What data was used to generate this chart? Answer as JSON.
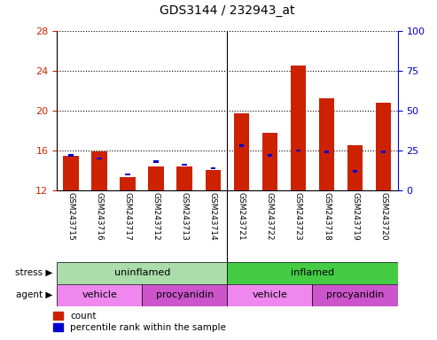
{
  "title": "GDS3144 / 232943_at",
  "samples": [
    "GSM243715",
    "GSM243716",
    "GSM243717",
    "GSM243712",
    "GSM243713",
    "GSM243714",
    "GSM243721",
    "GSM243722",
    "GSM243723",
    "GSM243718",
    "GSM243719",
    "GSM243720"
  ],
  "red_values": [
    15.5,
    15.9,
    13.3,
    14.4,
    14.4,
    14.0,
    19.7,
    17.8,
    24.5,
    21.2,
    16.5,
    20.8
  ],
  "blue_values_pct": [
    22,
    20,
    10,
    18,
    16,
    14,
    28,
    22,
    25,
    24,
    12,
    24
  ],
  "y_min": 12,
  "y_max": 28,
  "y_ticks_left": [
    12,
    16,
    20,
    24,
    28
  ],
  "y_ticks_right": [
    0,
    25,
    50,
    75,
    100
  ],
  "stress_groups": [
    {
      "label": "uninflamed",
      "start": 0,
      "end": 6,
      "color": "#aaddaa"
    },
    {
      "label": "inflamed",
      "start": 6,
      "end": 12,
      "color": "#44cc44"
    }
  ],
  "agent_groups": [
    {
      "label": "vehicle",
      "start": 0,
      "end": 3,
      "color": "#ee88ee"
    },
    {
      "label": "procyanidin",
      "start": 3,
      "end": 6,
      "color": "#cc55cc"
    },
    {
      "label": "vehicle",
      "start": 6,
      "end": 9,
      "color": "#ee88ee"
    },
    {
      "label": "procyanidin",
      "start": 9,
      "end": 12,
      "color": "#cc55cc"
    }
  ],
  "bar_color": "#cc2200",
  "blue_color": "#0000cc",
  "bg_color": "#cccccc",
  "plot_bg": "#ffffff",
  "left_axis_color": "#cc2200",
  "right_axis_color": "#0000cc",
  "split_at": 5.5
}
